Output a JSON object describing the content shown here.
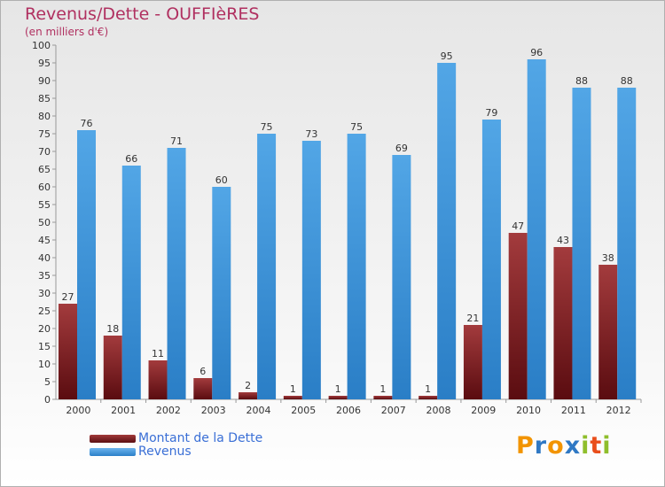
{
  "title": "Revenus/Dette - OUFFIèRES",
  "subtitle": "(en milliers d'€)",
  "colors": {
    "dette": "#7b1f24",
    "revenus": "#3d93d9",
    "title": "#b03060",
    "legend_text": "#3a6fd6"
  },
  "chart_data": {
    "type": "bar",
    "title": "Revenus/Dette - OUFFIèRES",
    "ylabel": "(en milliers d'€)",
    "xlabel": "",
    "ylim": [
      0,
      100
    ],
    "ytick_step": 5,
    "grid": false,
    "legend_position": "bottom-left",
    "categories": [
      "2000",
      "2001",
      "2002",
      "2003",
      "2004",
      "2005",
      "2006",
      "2007",
      "2008",
      "2009",
      "2010",
      "2011",
      "2012"
    ],
    "series": [
      {
        "name": "Montant de la Dette",
        "values": [
          27,
          18,
          11,
          6,
          2,
          1,
          1,
          1,
          1,
          21,
          47,
          43,
          38
        ]
      },
      {
        "name": "Revenus",
        "values": [
          76,
          66,
          71,
          60,
          75,
          73,
          75,
          69,
          95,
          79,
          96,
          88,
          88
        ]
      }
    ]
  },
  "logo": {
    "text": "Proxiti",
    "letters": [
      "P",
      "r",
      "o",
      "x",
      "i",
      "t",
      "i"
    ],
    "colors": [
      "#f29400",
      "#2f78c4",
      "#f29400",
      "#2f78c4",
      "#8fbe2c",
      "#e94e1b",
      "#8fbe2c"
    ]
  }
}
